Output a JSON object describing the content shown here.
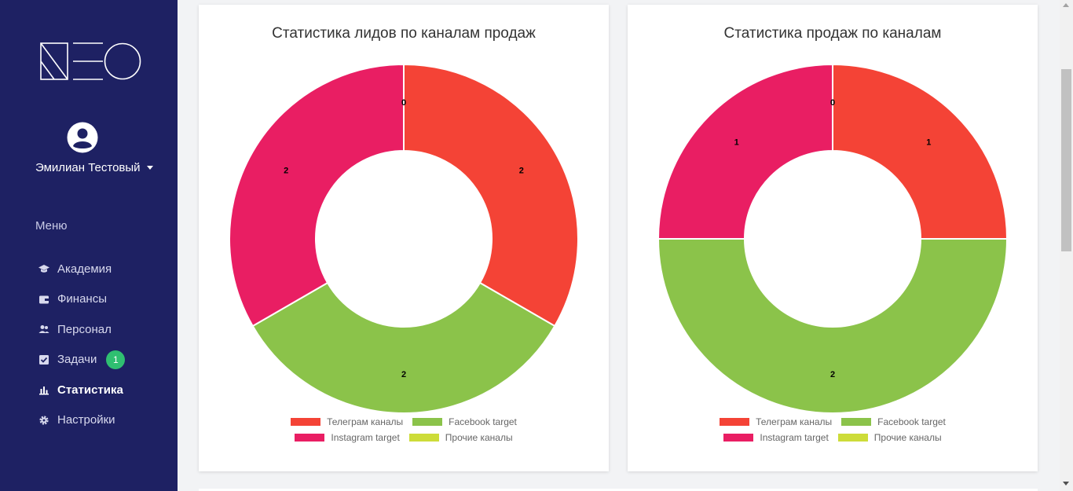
{
  "sidebar": {
    "logo": "NEO",
    "user_name": "Эмилиан Тестовый",
    "menu_label": "Меню",
    "items": [
      {
        "label": "Академия",
        "icon": "graduation-cap-icon"
      },
      {
        "label": "Финансы",
        "icon": "wallet-icon"
      },
      {
        "label": "Персонал",
        "icon": "users-icon"
      },
      {
        "label": "Задачи",
        "icon": "checkbox-icon",
        "badge": "1"
      },
      {
        "label": "Статистика",
        "icon": "bar-chart-icon",
        "active": true
      },
      {
        "label": "Настройки",
        "icon": "gear-icon"
      }
    ]
  },
  "colors": {
    "sidebar_bg": "#1e2163",
    "telegram": "#f44336",
    "facebook": "#8bc34a",
    "instagram": "#e91e63",
    "other": "#cddc39",
    "badge": "#2fbf71"
  },
  "chart_data": [
    {
      "type": "pie",
      "title": "Статистика лидов по каналам продаж",
      "categories": [
        "Телеграм каналы",
        "Facebook target",
        "Instagram target",
        "Прочие каналы"
      ],
      "values": [
        2,
        2,
        2,
        0
      ],
      "data_labels": [
        "2",
        "2",
        "2",
        "0"
      ],
      "legend": "bottom"
    },
    {
      "type": "pie",
      "title": "Статистика продаж по каналам",
      "categories": [
        "Телеграм каналы",
        "Facebook target",
        "Instagram target",
        "Прочие каналы"
      ],
      "values": [
        1,
        2,
        1,
        0
      ],
      "data_labels": [
        "1",
        "2",
        "1",
        "0"
      ],
      "legend": "bottom"
    }
  ]
}
